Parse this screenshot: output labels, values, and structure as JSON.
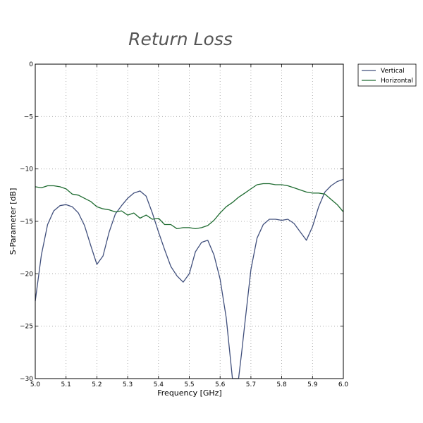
{
  "chart_data": {
    "type": "line",
    "title": "Return Loss",
    "xlabel": "Frequency [GHz]",
    "ylabel": "S-Parameter [dB]",
    "xlim": [
      5.0,
      6.0
    ],
    "ylim": [
      -30,
      0
    ],
    "xticks": [
      "5.0",
      "5.1",
      "5.2",
      "5.3",
      "5.4",
      "5.5",
      "5.6",
      "5.7",
      "5.8",
      "5.9",
      "6.0"
    ],
    "yticks": [
      "0",
      "−5",
      "−10",
      "−15",
      "−20",
      "−25",
      "−30"
    ],
    "grid": true,
    "legend_position": "outside-top-right",
    "series": [
      {
        "name": "Vertical",
        "color": "#404f7c",
        "x": [
          5.0,
          5.02,
          5.04,
          5.06,
          5.08,
          5.1,
          5.12,
          5.14,
          5.16,
          5.18,
          5.2,
          5.22,
          5.24,
          5.26,
          5.28,
          5.3,
          5.32,
          5.34,
          5.36,
          5.38,
          5.4,
          5.42,
          5.44,
          5.46,
          5.48,
          5.5,
          5.52,
          5.54,
          5.56,
          5.58,
          5.6,
          5.62,
          5.64,
          5.66,
          5.67,
          5.68,
          5.7,
          5.72,
          5.74,
          5.76,
          5.78,
          5.8,
          5.82,
          5.84,
          5.86,
          5.88,
          5.9,
          5.92,
          5.94,
          5.96,
          5.98,
          6.0
        ],
        "y": [
          -22.6,
          -18.2,
          -15.3,
          -14.0,
          -13.5,
          -13.4,
          -13.6,
          -14.2,
          -15.4,
          -17.3,
          -19.1,
          -18.3,
          -16.0,
          -14.3,
          -13.5,
          -12.8,
          -12.3,
          -12.1,
          -12.6,
          -14.2,
          -16.0,
          -17.7,
          -19.3,
          -20.2,
          -20.8,
          -20.0,
          -17.9,
          -17.0,
          -16.8,
          -18.2,
          -20.5,
          -24.2,
          -30.0,
          -30.0,
          -27.5,
          -24.8,
          -19.6,
          -16.6,
          -15.3,
          -14.8,
          -14.8,
          -14.9,
          -14.8,
          -15.2,
          -16.0,
          -16.8,
          -15.5,
          -13.6,
          -12.2,
          -11.6,
          -11.2,
          -11.0
        ]
      },
      {
        "name": "Horizontal",
        "color": "#1e6b30",
        "x": [
          5.0,
          5.02,
          5.04,
          5.06,
          5.08,
          5.1,
          5.12,
          5.14,
          5.16,
          5.18,
          5.2,
          5.22,
          5.24,
          5.26,
          5.28,
          5.3,
          5.32,
          5.34,
          5.36,
          5.38,
          5.4,
          5.42,
          5.44,
          5.46,
          5.48,
          5.5,
          5.52,
          5.54,
          5.56,
          5.58,
          5.6,
          5.62,
          5.64,
          5.66,
          5.68,
          5.7,
          5.72,
          5.74,
          5.76,
          5.78,
          5.8,
          5.82,
          5.84,
          5.86,
          5.88,
          5.9,
          5.92,
          5.94,
          5.96,
          5.98,
          6.0
        ],
        "y": [
          -11.7,
          -11.8,
          -11.6,
          -11.6,
          -11.7,
          -11.9,
          -12.4,
          -12.5,
          -12.8,
          -13.1,
          -13.6,
          -13.8,
          -13.9,
          -14.1,
          -14.0,
          -14.4,
          -14.2,
          -14.7,
          -14.4,
          -14.8,
          -14.7,
          -15.3,
          -15.3,
          -15.7,
          -15.6,
          -15.6,
          -15.7,
          -15.6,
          -15.4,
          -14.9,
          -14.2,
          -13.6,
          -13.2,
          -12.7,
          -12.3,
          -11.9,
          -11.5,
          -11.4,
          -11.4,
          -11.5,
          -11.5,
          -11.6,
          -11.8,
          -12.0,
          -12.2,
          -12.3,
          -12.3,
          -12.4,
          -12.9,
          -13.4,
          -14.1
        ]
      }
    ]
  }
}
